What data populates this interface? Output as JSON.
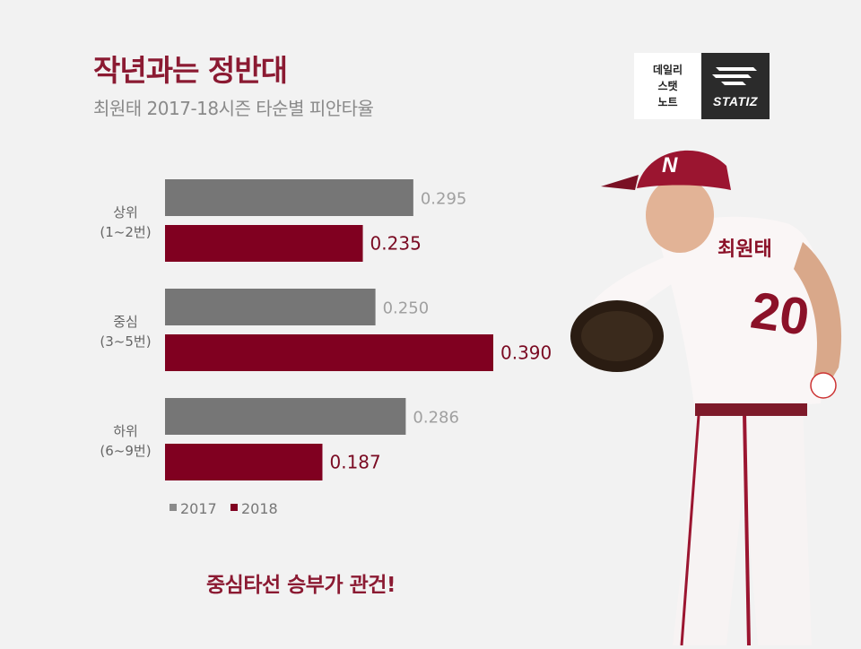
{
  "header": {
    "title": "작년과는 정반대",
    "subtitle": "최원태 2017-18시즌 타순별 피안타율"
  },
  "logo": {
    "left_lines": [
      "데일리",
      "스탯",
      "노트"
    ],
    "right_wordmark": "STATIZ"
  },
  "colors": {
    "bar_2017": "#767676",
    "bar_2018": "#800020",
    "label_2017": "#a0a0a0",
    "label_2018": "#7a0a22",
    "accent": "#8b1a32"
  },
  "chart_data": {
    "type": "bar",
    "orientation": "horizontal",
    "categories": [
      [
        "상위",
        "(1~2번)"
      ],
      [
        "중심",
        "(3~5번)"
      ],
      [
        "하위",
        "(6~9번)"
      ]
    ],
    "series": [
      {
        "name": "2017",
        "values": [
          0.295,
          0.25,
          0.286
        ],
        "labels": [
          "0.295",
          "0.250",
          "0.286"
        ]
      },
      {
        "name": "2018",
        "values": [
          0.235,
          0.39,
          0.187
        ],
        "labels": [
          "0.235",
          "0.390",
          "0.187"
        ]
      }
    ],
    "xlim": [
      0,
      0.4
    ],
    "grid": false,
    "legend": "bottom-left"
  },
  "footer": {
    "text": "중심타선 승부가 관건!"
  }
}
